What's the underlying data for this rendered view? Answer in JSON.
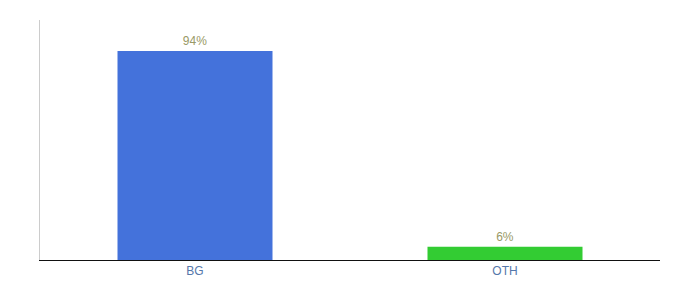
{
  "chart_data": {
    "type": "bar",
    "categories": [
      "BG",
      "OTH"
    ],
    "values": [
      94,
      6
    ],
    "value_labels": [
      "94%",
      "6%"
    ],
    "colors": [
      "#4472db",
      "#33cc33"
    ],
    "ylim": [
      0,
      108
    ],
    "yticks": [],
    "grid": false,
    "data_labels": true,
    "tick_labels": "x"
  }
}
